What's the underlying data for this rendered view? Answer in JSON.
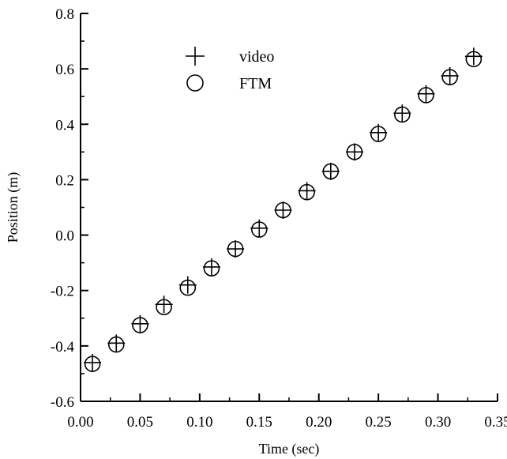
{
  "chart_data": {
    "type": "scatter",
    "title": "",
    "xlabel": "Time (sec)",
    "ylabel": "Position (m)",
    "xlim": [
      0.0,
      0.35
    ],
    "ylim": [
      -0.6,
      0.8
    ],
    "x_ticks": [
      "0.00",
      "0.05",
      "0.10",
      "0.15",
      "0.20",
      "0.25",
      "0.30",
      "0.35"
    ],
    "y_ticks": [
      "-0.6",
      "-0.4",
      "-0.2",
      "0.0",
      "0.2",
      "0.4",
      "0.6",
      "0.8"
    ],
    "grid": false,
    "legend_position": "top-left",
    "series": [
      {
        "name": "video",
        "marker": "plus",
        "x": [
          0.01,
          0.03,
          0.05,
          0.07,
          0.09,
          0.11,
          0.13,
          0.15,
          0.17,
          0.19,
          0.21,
          0.23,
          0.25,
          0.27,
          0.29,
          0.31,
          0.33
        ],
        "y": [
          -0.46,
          -0.39,
          -0.32,
          -0.25,
          -0.18,
          -0.115,
          -0.05,
          0.025,
          0.09,
          0.16,
          0.23,
          0.3,
          0.37,
          0.44,
          0.51,
          0.575,
          0.645
        ]
      },
      {
        "name": "FTM",
        "marker": "circle",
        "x": [
          0.01,
          0.03,
          0.05,
          0.07,
          0.09,
          0.11,
          0.13,
          0.15,
          0.17,
          0.19,
          0.21,
          0.23,
          0.25,
          0.27,
          0.29,
          0.31,
          0.33
        ],
        "y": [
          -0.465,
          -0.395,
          -0.325,
          -0.26,
          -0.19,
          -0.12,
          -0.05,
          0.02,
          0.09,
          0.155,
          0.23,
          0.3,
          0.365,
          0.435,
          0.505,
          0.57,
          0.635
        ]
      }
    ]
  }
}
